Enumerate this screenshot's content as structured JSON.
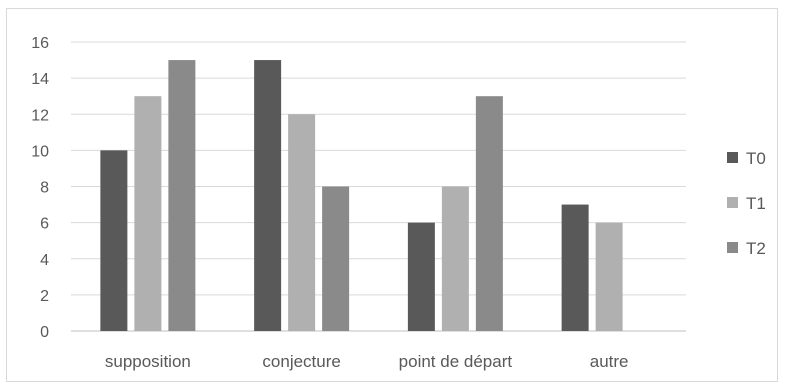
{
  "chart_data": {
    "type": "bar",
    "title": "",
    "xlabel": "",
    "ylabel": "",
    "categories": [
      "supposition",
      "conjecture",
      "point de départ",
      "autre"
    ],
    "series": [
      {
        "name": "T0",
        "values": [
          10,
          15,
          6,
          7
        ],
        "color": "#595959"
      },
      {
        "name": "T1",
        "values": [
          13,
          12,
          8,
          6
        ],
        "color": "#b0b0b0"
      },
      {
        "name": "T2",
        "values": [
          15,
          8,
          13,
          null
        ],
        "color": "#8a8a8a"
      }
    ],
    "ylim": [
      0,
      16
    ],
    "yticks": [
      "0",
      "2",
      "4",
      "6",
      "8",
      "10",
      "12",
      "14",
      "16"
    ],
    "grid": true,
    "legend_position": "right"
  }
}
